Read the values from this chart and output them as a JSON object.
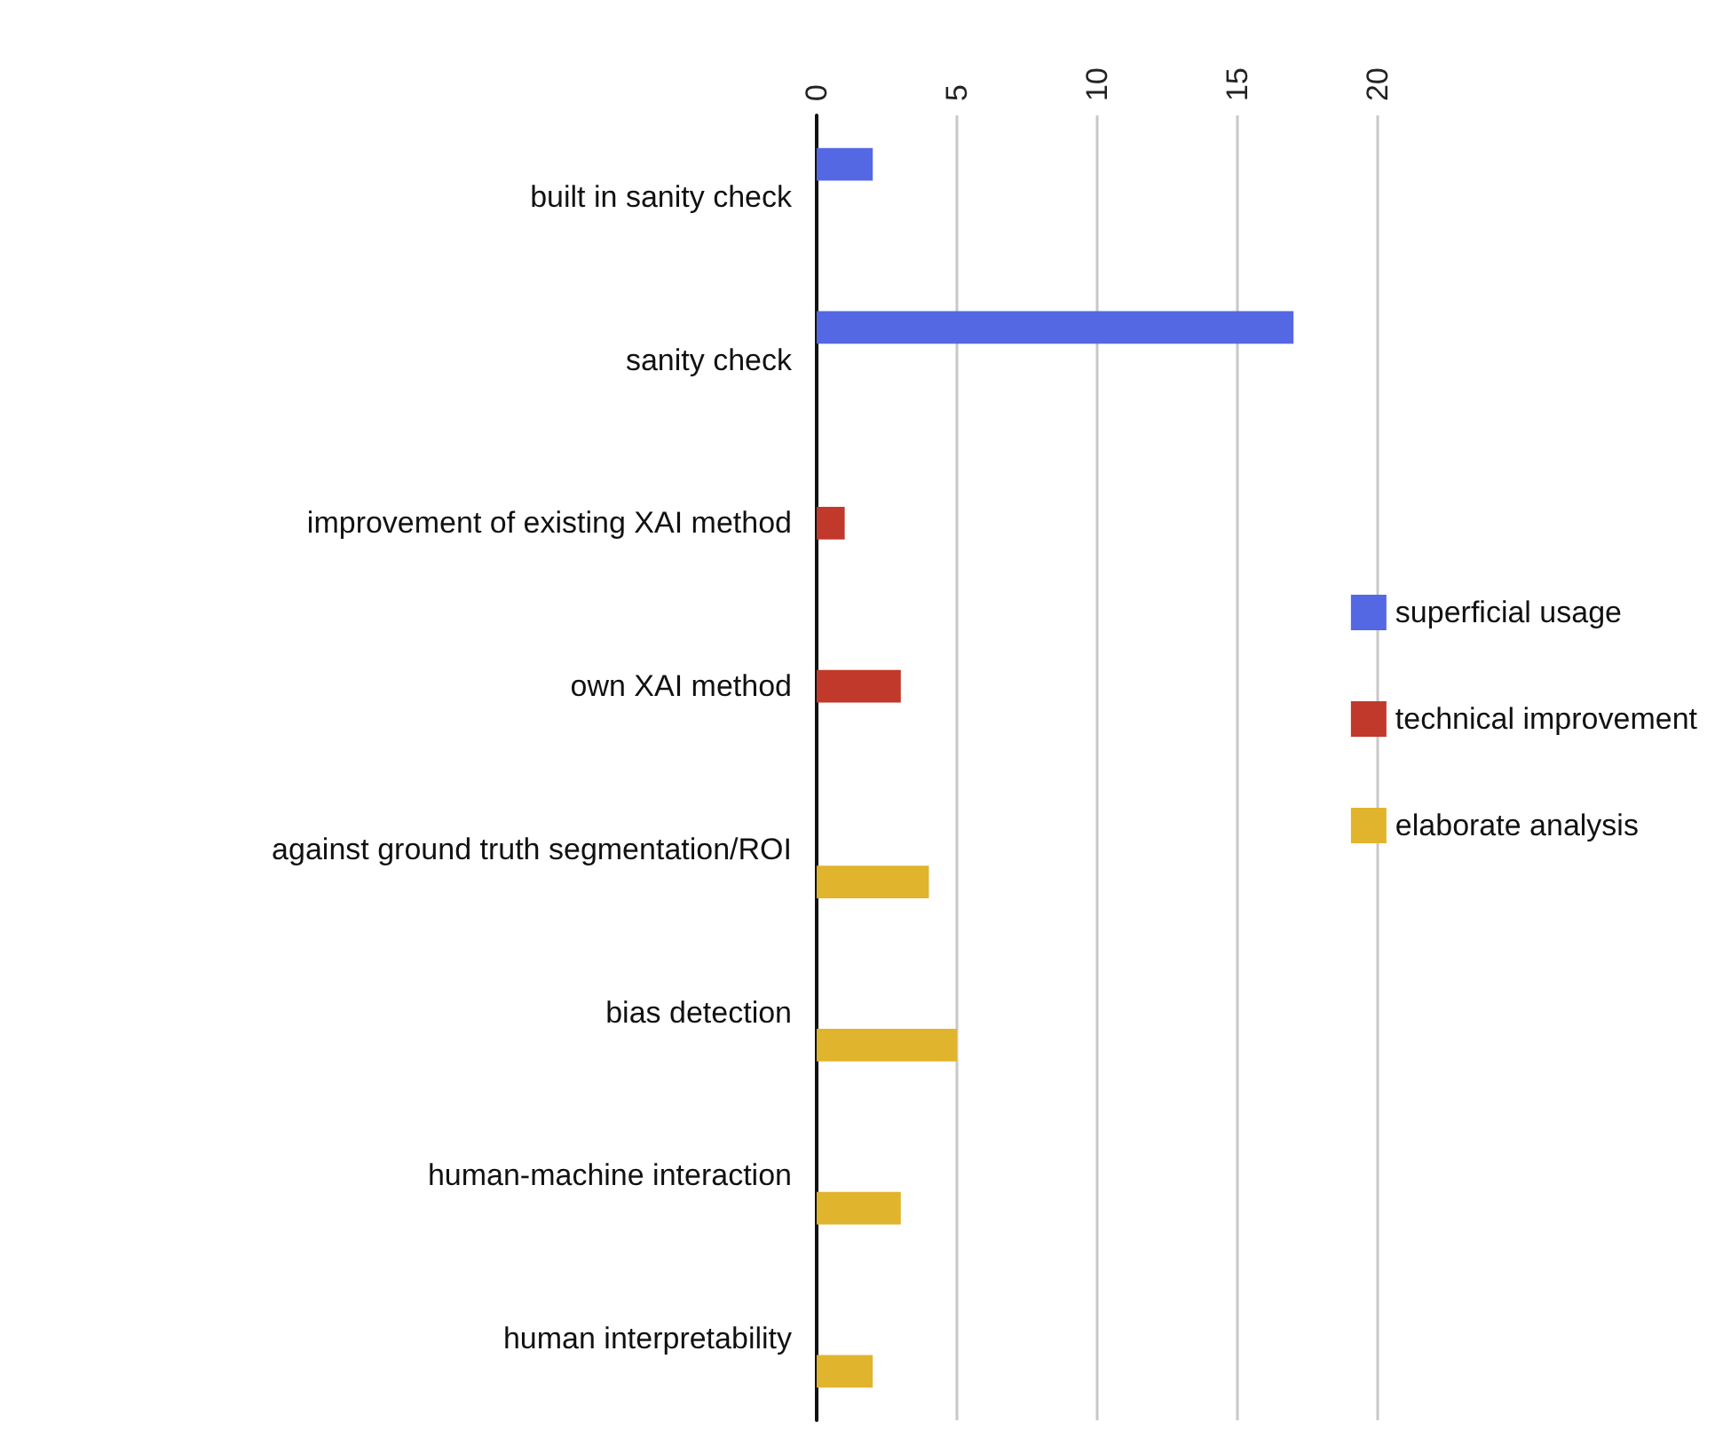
{
  "chart_data": {
    "type": "bar",
    "orientation": "horizontal",
    "categories": [
      "built in sanity check",
      "sanity check",
      "improvement of existing XAI method",
      "own XAI method",
      "against ground truth segmentation/ROI",
      "bias detection",
      "human-machine interaction",
      "human interpretability"
    ],
    "series": [
      {
        "name": "superficial usage",
        "color": "#5468e4",
        "values": [
          2,
          17,
          null,
          null,
          null,
          null,
          null,
          null
        ]
      },
      {
        "name": "technical improvement",
        "color": "#c0392b",
        "values": [
          null,
          null,
          1,
          3,
          null,
          null,
          null,
          null
        ]
      },
      {
        "name": "elaborate analysis",
        "color": "#e1b42d",
        "values": [
          null,
          null,
          null,
          null,
          4,
          5,
          3,
          2
        ]
      }
    ],
    "xlim": [
      0,
      20
    ],
    "xticks": [
      0,
      5,
      10,
      15,
      20
    ],
    "grid": "x",
    "legend": "right"
  }
}
